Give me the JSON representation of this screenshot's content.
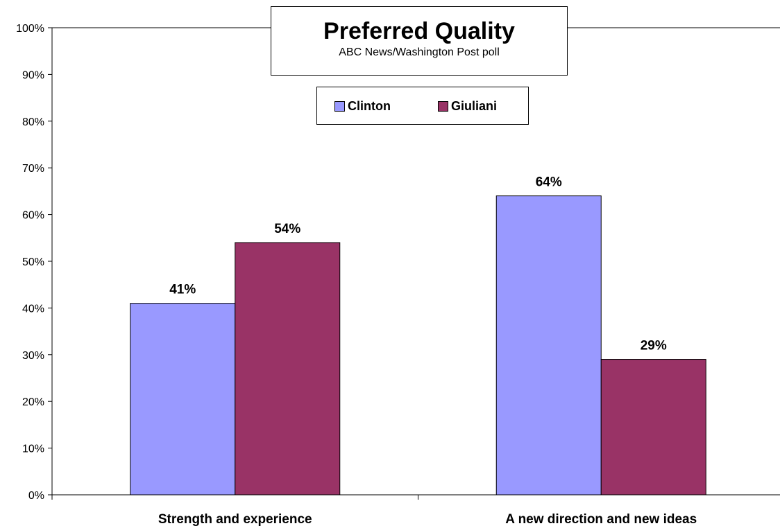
{
  "chart_data": {
    "type": "bar",
    "title": "Preferred Quality",
    "subtitle": "ABC News/Washington Post poll",
    "categories": [
      "Strength and experience",
      "A new direction and new ideas"
    ],
    "series": [
      {
        "name": "Clinton",
        "values": [
          41,
          64
        ],
        "labels": [
          "41%",
          "64%"
        ],
        "color": "#9999FF"
      },
      {
        "name": "Giuliani",
        "values": [
          54,
          29
        ],
        "labels": [
          "54%",
          "29%"
        ],
        "color": "#993366"
      }
    ],
    "yticks": [
      "0%",
      "10%",
      "20%",
      "30%",
      "40%",
      "50%",
      "60%",
      "70%",
      "80%",
      "90%",
      "100%"
    ],
    "ylim": [
      0,
      100
    ],
    "xlabel": "",
    "ylabel": "",
    "grid": false,
    "legend": "top-center"
  }
}
